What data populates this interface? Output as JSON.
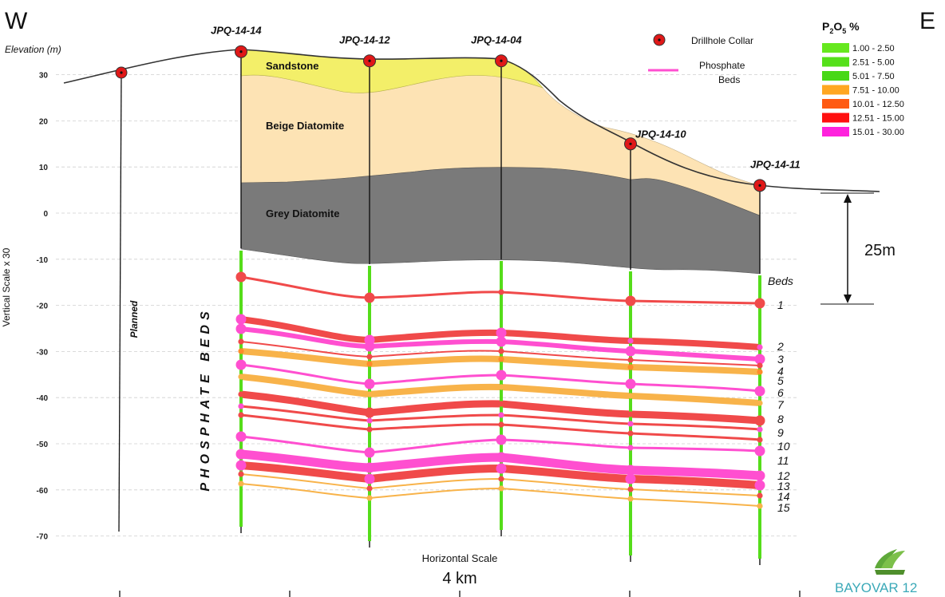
{
  "direction": {
    "west": "W",
    "east": "E"
  },
  "elevation_label": "Elevation (m)",
  "vertical_scale_label": "Vertical Scale x 30",
  "elevation_ticks": [
    30,
    20,
    10,
    0,
    -10,
    -20,
    -30,
    -40,
    -50,
    -60,
    -70
  ],
  "drillholes": [
    {
      "id": "JPQ-14-14",
      "collar_elev": 35
    },
    {
      "id": "JPQ-14-12",
      "collar_elev": 33
    },
    {
      "id": "JPQ-14-04",
      "collar_elev": 33
    },
    {
      "id": "JPQ-14-10",
      "collar_elev": 15
    },
    {
      "id": "JPQ-14-11",
      "collar_elev": 6
    }
  ],
  "planned_label": "Planned",
  "phosphate_beds_label": "PHOSPHATE  BEDS",
  "units": {
    "sandstone": "Sandstone",
    "beige_diatomite": "Beige Diatomite",
    "grey_diatomite": "Grey Diatomite"
  },
  "legend": {
    "collar_label": "Drillhole Collar",
    "beds_label_line1": "Phosphate",
    "beds_label_line2": "Beds"
  },
  "grade_legend": {
    "title_main": "P",
    "title_sub": "2",
    "title_main2": "O",
    "title_sub2": "5",
    "title_unit": " %",
    "ranges": [
      {
        "label": "1.00 - 2.50",
        "color": "#66e81e"
      },
      {
        "label": "2.51 - 5.00",
        "color": "#55e01a"
      },
      {
        "label": "5.01 - 7.50",
        "color": "#47d816"
      },
      {
        "label": "7.51 - 10.00",
        "color": "#ffa722"
      },
      {
        "label": "10.01 - 12.50",
        "color": "#ff5a12"
      },
      {
        "label": "12.51 - 15.00",
        "color": "#ff1010"
      },
      {
        "label": "15.01 - 30.00",
        "color": "#ff22dd"
      }
    ]
  },
  "beds_header": "Beds",
  "bed_numbers": [
    "1",
    "2",
    "3",
    "4",
    "5",
    "6",
    "7",
    "8",
    "9",
    "10",
    "11",
    "12",
    "13",
    "14",
    "15"
  ],
  "scale_bar_label": "25m",
  "horizontal_scale_label": "Horizontal Scale",
  "horizontal_scale_value": "4 km",
  "logo_text": "BAYOVAR 12",
  "colors": {
    "sandstone": "#f3ef69",
    "beige": "#fde3b4",
    "grey": "#7a7a7a",
    "overburden": "#e6e6e6",
    "pink": "#ff4fd0",
    "red": "#f04a4a",
    "orange": "#f8b34a",
    "collar": "#e01818",
    "logo": "#3ba9b8"
  }
}
